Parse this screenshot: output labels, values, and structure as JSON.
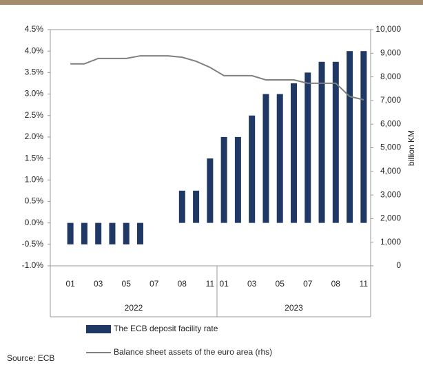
{
  "chart_data": {
    "type": "bar",
    "categories": [
      "01",
      null,
      "03",
      null,
      "05",
      null,
      "07",
      null,
      "08",
      null,
      "11",
      "01",
      null,
      "03",
      null,
      "05",
      null,
      "07",
      null,
      "08",
      null,
      "11"
    ],
    "x_groups": [
      "2022",
      "2023"
    ],
    "y2label": "billion KM",
    "source": "Source: ECB",
    "series": [
      {
        "name": "The ECB deposit facility rate",
        "type": "bar",
        "color": "#1f3864",
        "values": [
          -0.5,
          -0.5,
          -0.5,
          -0.5,
          -0.5,
          -0.5,
          0,
          0,
          0.75,
          0.75,
          1.5,
          2.0,
          2.0,
          2.5,
          3.0,
          3.0,
          3.25,
          3.5,
          3.75,
          3.75,
          4.0,
          4.0
        ]
      },
      {
        "name": "Balance sheet assets of the euro area (rhs)",
        "type": "line",
        "axis": "y2",
        "color": "#7f7f7f",
        "values": [
          8550,
          8550,
          8780,
          8780,
          8780,
          8890,
          8890,
          8890,
          8830,
          8660,
          8400,
          8050,
          8050,
          8050,
          7870,
          7870,
          7870,
          7730,
          7730,
          7730,
          7170,
          7030
        ]
      }
    ],
    "ylim": [
      -1.0,
      4.5
    ],
    "yticks": [
      {
        "value": -1.0,
        "label": "-1.0%"
      },
      {
        "value": -0.5,
        "label": "-0.5%"
      },
      {
        "value": 0,
        "label": "0.0%"
      },
      {
        "value": 0.5,
        "label": "0.5%"
      },
      {
        "value": 1.0,
        "label": "1.0%"
      },
      {
        "value": 1.5,
        "label": "1.5%"
      },
      {
        "value": 2.0,
        "label": "2.0%"
      },
      {
        "value": 2.5,
        "label": "2.5%"
      },
      {
        "value": 3.0,
        "label": "3.0%"
      },
      {
        "value": 3.5,
        "label": "3.5%"
      },
      {
        "value": 4.0,
        "label": "4.0%"
      },
      {
        "value": 4.5,
        "label": "4.5%"
      }
    ],
    "y2lim": [
      0,
      10000
    ],
    "y2ticks": [
      0,
      {
        "value": 1000,
        "label": "1,000"
      },
      {
        "value": 2000,
        "label": "2,000"
      },
      {
        "value": 3000,
        "label": "3,000"
      },
      {
        "value": 4000,
        "label": "4,000"
      },
      {
        "value": 5000,
        "label": "5,000"
      },
      {
        "value": 6000,
        "label": "6,000"
      },
      {
        "value": 7000,
        "label": "7,000"
      },
      {
        "value": 8000,
        "label": "8,000"
      },
      {
        "value": 9000,
        "label": "9,000"
      },
      {
        "value": 10000,
        "label": "10,000"
      }
    ],
    "grid": false
  }
}
